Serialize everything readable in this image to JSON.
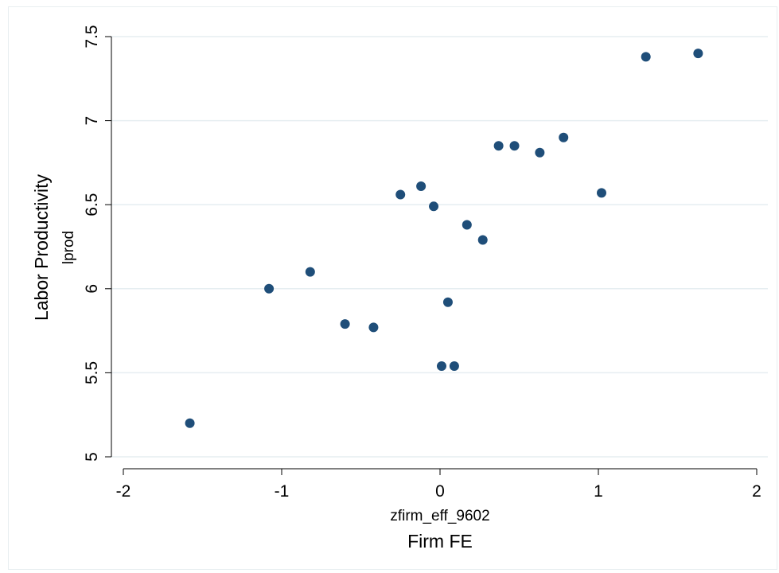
{
  "chart_data": {
    "type": "scatter",
    "title": "",
    "xlabel_var": "zfirm_eff_9602",
    "xlabel": "Firm FE",
    "ylabel_var": "lprod",
    "ylabel": "Labor Productivity",
    "xlim": [
      -2,
      2
    ],
    "ylim": [
      5,
      7.5
    ],
    "xticks": [
      -2,
      -1,
      0,
      1,
      2
    ],
    "yticks": [
      5,
      5.5,
      6,
      6.5,
      7,
      7.5
    ],
    "xtick_labels": [
      "-2",
      "-1",
      "0",
      "1",
      "2"
    ],
    "ytick_labels": [
      "5",
      "5.5",
      "6",
      "6.5",
      "7",
      "7.5"
    ],
    "grid": true,
    "marker_color": "#1f4e79",
    "series": [
      {
        "points": [
          {
            "x": -1.58,
            "y": 5.2
          },
          {
            "x": -1.08,
            "y": 6.0
          },
          {
            "x": -0.82,
            "y": 6.1
          },
          {
            "x": -0.6,
            "y": 5.79
          },
          {
            "x": -0.42,
            "y": 5.77
          },
          {
            "x": -0.25,
            "y": 6.56
          },
          {
            "x": -0.12,
            "y": 6.61
          },
          {
            "x": -0.04,
            "y": 6.49
          },
          {
            "x": 0.01,
            "y": 5.54
          },
          {
            "x": 0.05,
            "y": 5.92
          },
          {
            "x": 0.09,
            "y": 5.54
          },
          {
            "x": 0.17,
            "y": 6.38
          },
          {
            "x": 0.27,
            "y": 6.29
          },
          {
            "x": 0.37,
            "y": 6.85
          },
          {
            "x": 0.47,
            "y": 6.85
          },
          {
            "x": 0.63,
            "y": 6.81
          },
          {
            "x": 0.78,
            "y": 6.9
          },
          {
            "x": 1.02,
            "y": 6.57
          },
          {
            "x": 1.3,
            "y": 7.38
          },
          {
            "x": 1.63,
            "y": 7.4
          }
        ]
      }
    ]
  }
}
